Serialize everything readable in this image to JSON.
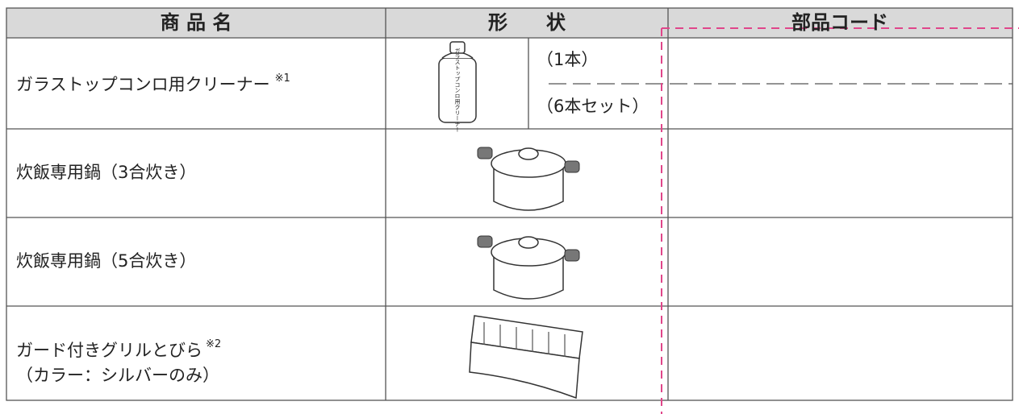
{
  "table": {
    "headers": [
      "商 品 名",
      "形　　状",
      "部品コード"
    ],
    "rows": [
      {
        "name": "ガラストップコンロ用クリーナー",
        "note": "※1",
        "bottle_label": "ガラストップコンロ用クリーナー",
        "shapes": [
          "（1本）",
          "（6本セット）"
        ]
      },
      {
        "name": "炊飯専用鍋（3合炊き）"
      },
      {
        "name": "炊飯専用鍋（5合炊き）"
      },
      {
        "name": "ガード付きグリルとびら",
        "note": "※2",
        "name_line2": "（カラー：シルバーのみ）"
      }
    ]
  }
}
